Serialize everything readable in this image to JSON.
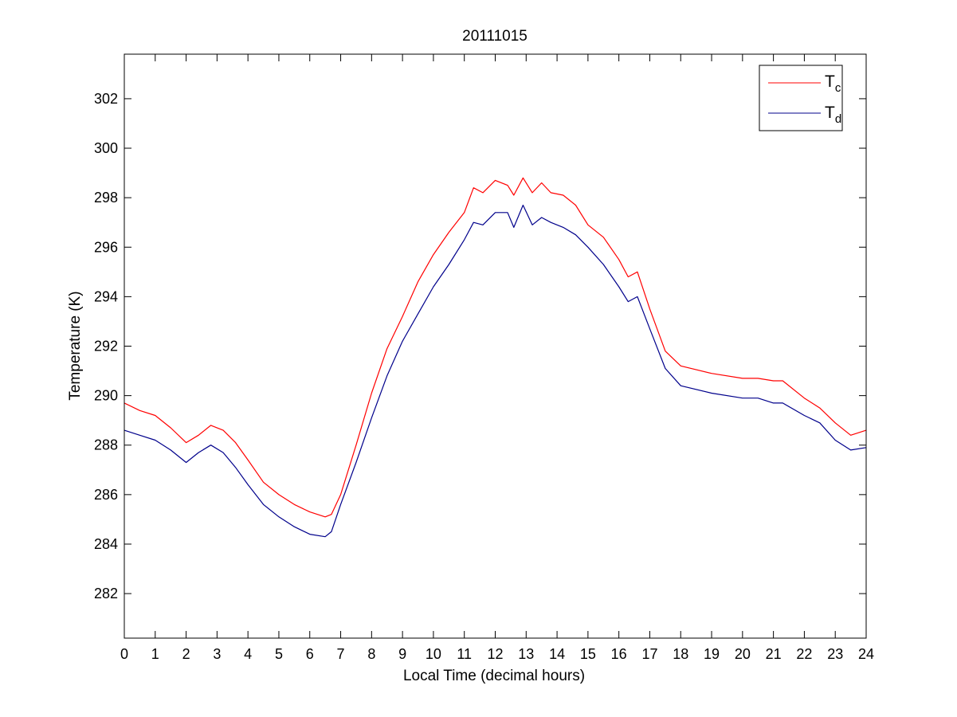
{
  "chart_data": {
    "type": "line",
    "title": "20111015",
    "xlabel": "Local Time (decimal hours)",
    "ylabel": "Temperature (K)",
    "xlim": [
      0,
      24
    ],
    "ylim": [
      280.2,
      303.8
    ],
    "xticks": [
      0,
      1,
      2,
      3,
      4,
      5,
      6,
      7,
      8,
      9,
      10,
      11,
      12,
      13,
      14,
      15,
      16,
      17,
      18,
      19,
      20,
      21,
      22,
      23,
      24
    ],
    "yticks": [
      282,
      284,
      286,
      288,
      290,
      292,
      294,
      296,
      298,
      300,
      302
    ],
    "grid": false,
    "legend_position": "top-right",
    "series": [
      {
        "name": "T_c",
        "legend_main": "T",
        "legend_sub": "c",
        "color": "#ff0000",
        "x": [
          0,
          0.5,
          1,
          1.5,
          2,
          2.4,
          2.8,
          3.2,
          3.6,
          4,
          4.5,
          5,
          5.5,
          6,
          6.5,
          6.7,
          7,
          7.5,
          8,
          8.5,
          9,
          9.5,
          10,
          10.5,
          11,
          11.3,
          11.6,
          12,
          12.4,
          12.6,
          12.9,
          13.2,
          13.5,
          13.8,
          14.2,
          14.6,
          15,
          15.5,
          16,
          16.3,
          16.6,
          17,
          17.5,
          18,
          19,
          20,
          20.5,
          21,
          21.3,
          22,
          22.5,
          23,
          23.5,
          24
        ],
        "y": [
          289.7,
          289.4,
          289.2,
          288.7,
          288.1,
          288.4,
          288.8,
          288.6,
          288.1,
          287.4,
          286.5,
          286,
          285.6,
          285.3,
          285.1,
          285.2,
          286,
          288,
          290.1,
          291.9,
          293.2,
          294.6,
          295.7,
          296.6,
          297.4,
          298.4,
          298.2,
          298.7,
          298.5,
          298.1,
          298.8,
          298.2,
          298.6,
          298.2,
          298.1,
          297.7,
          296.9,
          296.4,
          295.5,
          294.8,
          295,
          293.5,
          291.8,
          291.2,
          290.9,
          290.7,
          290.7,
          290.6,
          290.6,
          289.9,
          289.5,
          288.9,
          288.4,
          288.6
        ]
      },
      {
        "name": "T_d",
        "legend_main": "T",
        "legend_sub": "d",
        "color": "#00008b",
        "x": [
          0,
          0.5,
          1,
          1.5,
          2,
          2.4,
          2.8,
          3.2,
          3.6,
          4,
          4.5,
          5,
          5.5,
          6,
          6.5,
          6.7,
          7,
          7.5,
          8,
          8.5,
          9,
          9.5,
          10,
          10.5,
          11,
          11.3,
          11.6,
          12,
          12.4,
          12.6,
          12.9,
          13.2,
          13.5,
          13.8,
          14.2,
          14.6,
          15,
          15.5,
          16,
          16.3,
          16.6,
          17,
          17.5,
          18,
          19,
          20,
          20.5,
          21,
          21.3,
          22,
          22.5,
          23,
          23.5,
          24
        ],
        "y": [
          288.6,
          288.4,
          288.2,
          287.8,
          287.3,
          287.7,
          288,
          287.7,
          287.1,
          286.4,
          285.6,
          285.1,
          284.7,
          284.4,
          284.3,
          284.5,
          285.6,
          287.3,
          289.1,
          290.8,
          292.2,
          293.3,
          294.4,
          295.3,
          296.3,
          297,
          296.9,
          297.4,
          297.4,
          296.8,
          297.7,
          296.9,
          297.2,
          297,
          296.8,
          296.5,
          296,
          295.3,
          294.4,
          293.8,
          294,
          292.7,
          291.1,
          290.4,
          290.1,
          289.9,
          289.9,
          289.7,
          289.7,
          289.2,
          288.9,
          288.2,
          287.8,
          287.9
        ]
      }
    ]
  }
}
